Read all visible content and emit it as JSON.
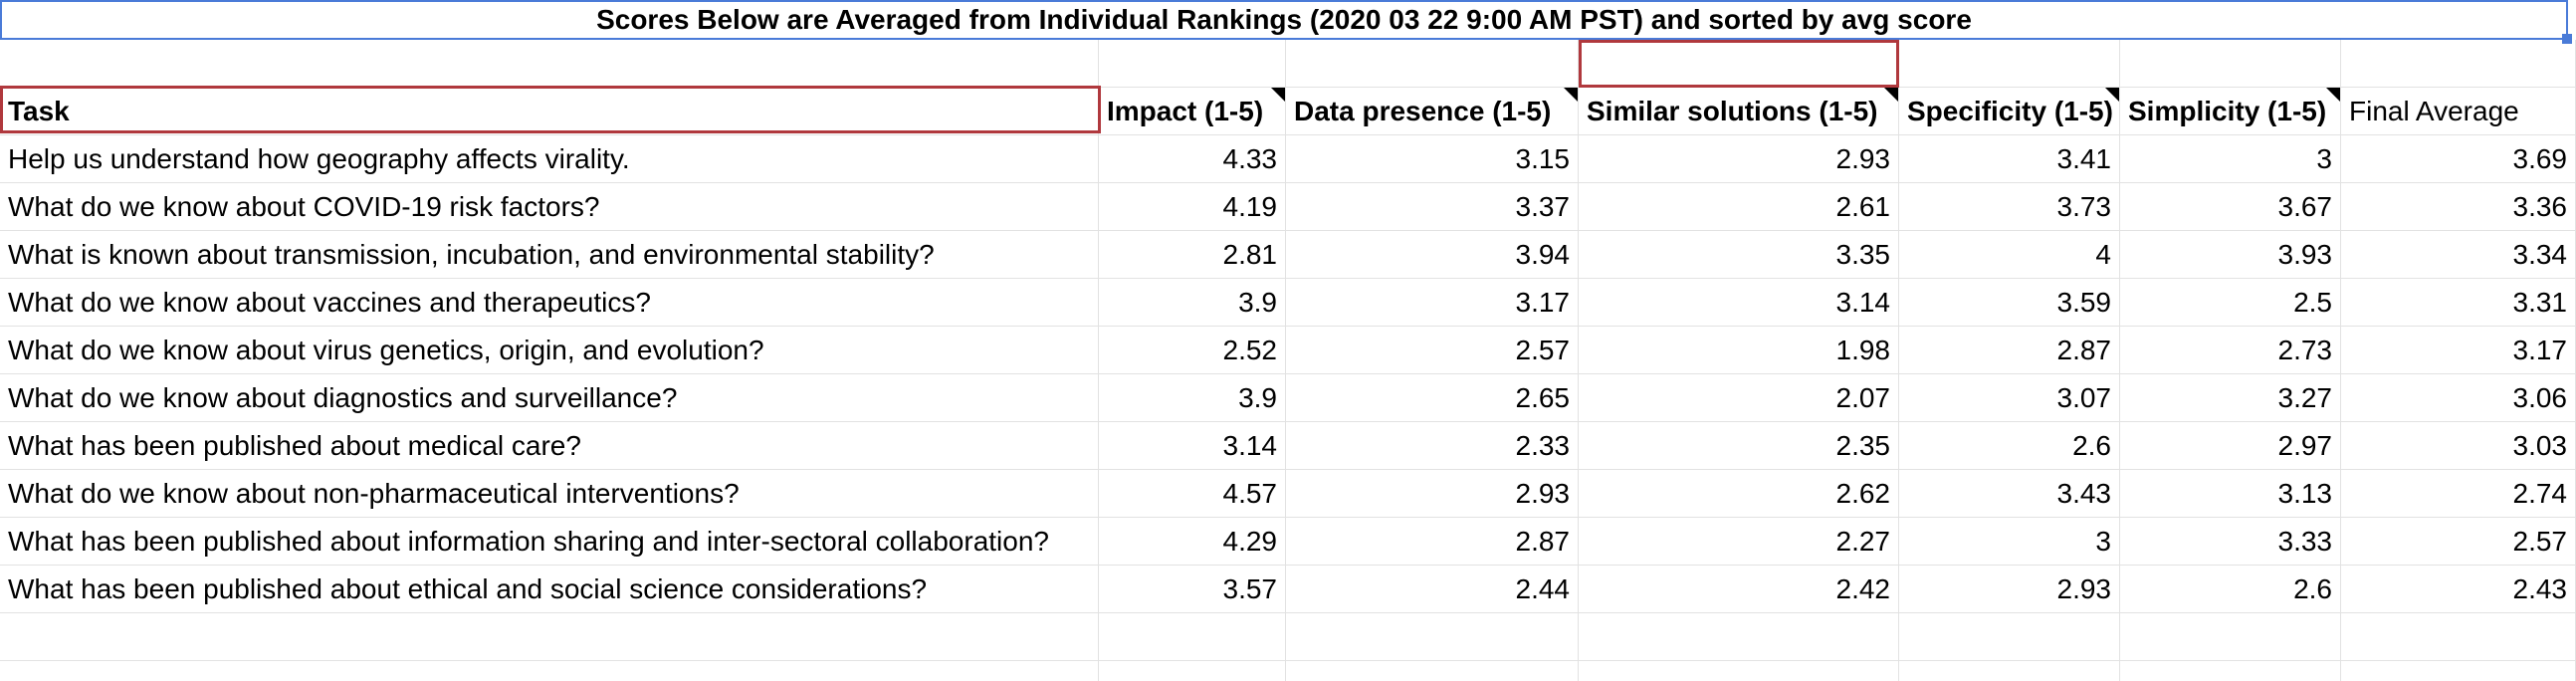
{
  "title": "Scores Below are Averaged from Individual Rankings (2020 03 22 9:00 AM PST) and sorted by avg score",
  "headers": {
    "task": "Task",
    "impact": "Impact (1-5)",
    "data_presence": "Data presence (1-5)",
    "similar_solutions": "Similar solutions (1-5)",
    "specificity": "Specificity (1-5)",
    "simplicity": "Simplicity (1-5)",
    "final_average": "Final Average"
  },
  "rows": [
    {
      "task": "Help us understand how geography affects virality.",
      "impact": "4.33",
      "data_presence": "3.15",
      "similar": "2.93",
      "specificity": "3.41",
      "simplicity": "3",
      "final": "3.69"
    },
    {
      "task": "What do we know about COVID-19 risk factors?",
      "impact": "4.19",
      "data_presence": "3.37",
      "similar": "2.61",
      "specificity": "3.73",
      "simplicity": "3.67",
      "final": "3.36"
    },
    {
      "task": "What is known about transmission, incubation, and environmental stability?",
      "impact": "2.81",
      "data_presence": "3.94",
      "similar": "3.35",
      "specificity": "4",
      "simplicity": "3.93",
      "final": "3.34"
    },
    {
      "task": "What do we know about vaccines and therapeutics?",
      "impact": "3.9",
      "data_presence": "3.17",
      "similar": "3.14",
      "specificity": "3.59",
      "simplicity": "2.5",
      "final": "3.31"
    },
    {
      "task": "What do we know about virus genetics, origin, and evolution?",
      "impact": "2.52",
      "data_presence": "2.57",
      "similar": "1.98",
      "specificity": "2.87",
      "simplicity": "2.73",
      "final": "3.17"
    },
    {
      "task": "What do we know about diagnostics and surveillance?",
      "impact": "3.9",
      "data_presence": "2.65",
      "similar": "2.07",
      "specificity": "3.07",
      "simplicity": "3.27",
      "final": "3.06"
    },
    {
      "task": "What has been published about medical care?",
      "impact": "3.14",
      "data_presence": "2.33",
      "similar": "2.35",
      "specificity": "2.6",
      "simplicity": "2.97",
      "final": "3.03"
    },
    {
      "task": "What do we know about non-pharmaceutical interventions?",
      "impact": "4.57",
      "data_presence": "2.93",
      "similar": "2.62",
      "specificity": "3.43",
      "simplicity": "3.13",
      "final": "2.74"
    },
    {
      "task": "What has been published about information sharing and inter-sectoral collaboration?",
      "impact": "4.29",
      "data_presence": "2.87",
      "similar": "2.27",
      "specificity": "3",
      "simplicity": "3.33",
      "final": "2.57"
    },
    {
      "task": "What has been published about ethical and social science considerations?",
      "impact": "3.57",
      "data_presence": "2.44",
      "similar": "2.42",
      "specificity": "2.93",
      "simplicity": "2.6",
      "final": "2.43"
    }
  ],
  "colors": {
    "selection": "#4a7bd8",
    "highlight_border": "#b0383d",
    "gridline": "#e2e2e2"
  }
}
